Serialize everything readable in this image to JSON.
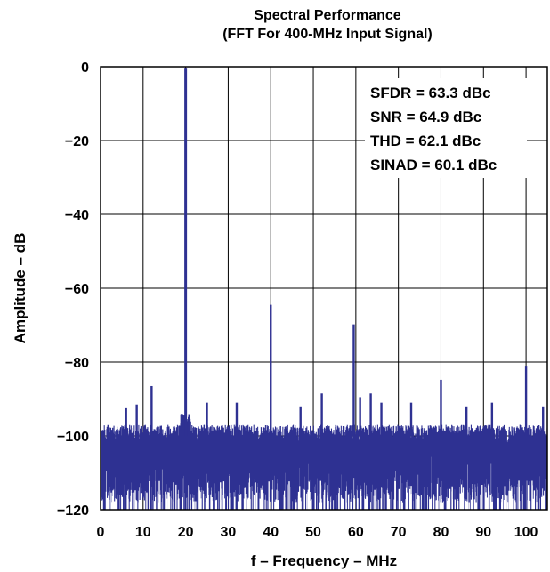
{
  "chart_data": {
    "type": "line",
    "title": [
      "Spectral Performance",
      "(FFT For 400-MHz Input Signal)"
    ],
    "xlabel": "f – Frequency – MHz",
    "ylabel": "Amplitude – dB",
    "xlim": [
      0,
      105
    ],
    "ylim": [
      -120,
      0
    ],
    "x_ticks": [
      "0",
      "10",
      "20",
      "30",
      "40",
      "50",
      "60",
      "70",
      "80",
      "90",
      "100"
    ],
    "y_ticks": [
      "0",
      "−20",
      "−40",
      "−60",
      "−80",
      "−100",
      "−120"
    ],
    "x_tick_values": [
      0,
      10,
      20,
      30,
      40,
      50,
      60,
      70,
      80,
      90,
      100
    ],
    "y_tick_values": [
      0,
      -20,
      -40,
      -60,
      -80,
      -100,
      -120
    ],
    "grid": true,
    "series_color": "#2e3192",
    "noise_floor": {
      "typical_max_dB": -98,
      "min_dB": -120
    },
    "peaks": [
      {
        "x": 20,
        "y": -0.5
      },
      {
        "x": 40,
        "y": -64.5
      },
      {
        "x": 59.5,
        "y": -69.8
      },
      {
        "x": 100,
        "y": -81
      },
      {
        "x": 12,
        "y": -86.5
      },
      {
        "x": 80,
        "y": -84.8
      },
      {
        "x": 52,
        "y": -88.5
      },
      {
        "x": 61,
        "y": -89.5
      },
      {
        "x": 63.5,
        "y": -88.5
      },
      {
        "x": 6,
        "y": -92.5
      },
      {
        "x": 8.5,
        "y": -91.5
      },
      {
        "x": 25,
        "y": -91
      },
      {
        "x": 32,
        "y": -91
      },
      {
        "x": 47,
        "y": -92
      },
      {
        "x": 66,
        "y": -91
      },
      {
        "x": 73,
        "y": -91
      },
      {
        "x": 86,
        "y": -92
      },
      {
        "x": 92,
        "y": -91
      },
      {
        "x": 104,
        "y": -92
      }
    ],
    "annotations": [
      "SFDR = 63.3 dBc",
      "SNR = 64.9 dBc",
      "THD = 62.1 dBc",
      "SINAD = 60.1 dBc"
    ]
  }
}
